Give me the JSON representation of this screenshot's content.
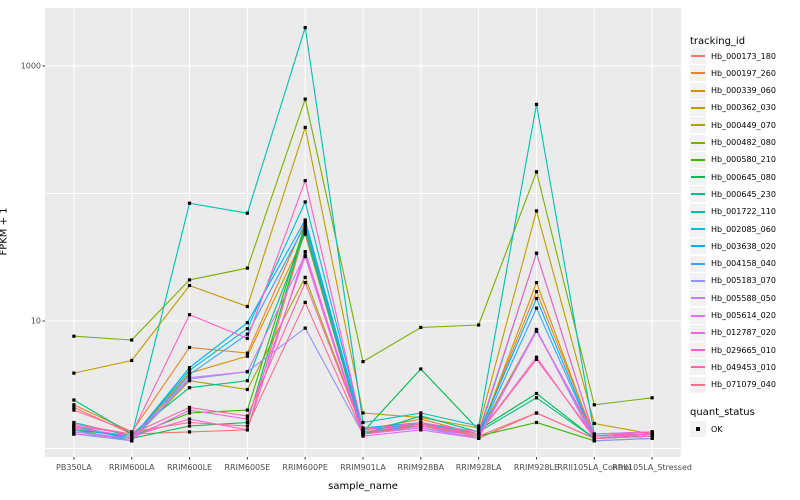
{
  "figure": {
    "x_axis_title": "sample_name",
    "y_axis_title": "FPKM + 1"
  },
  "legend": {
    "tracking_title": "tracking_id",
    "quant_title": "quant_status",
    "quant_items": [
      {
        "label": "OK",
        "shape": "black-square"
      }
    ]
  },
  "chart_data": {
    "type": "line",
    "title": "",
    "xlabel": "sample_name",
    "ylabel": "FPKM + 1",
    "scale_y": "log10",
    "ylim": [
      0.9,
      2900
    ],
    "y_ticks": [
      10,
      1000
    ],
    "y_gridlines": [
      1,
      10,
      100,
      1000
    ],
    "grid": true,
    "legend_position": "right",
    "panel_bg": "#EBEBEB",
    "gridline_color": "#FFFFFF",
    "point_color": "#000000",
    "tick_color": "#333333",
    "categories": [
      "PB350LA",
      "RRIM600LA",
      "RRIM600LE",
      "RRIM600SE",
      "RRIM600PE",
      "RRIM901LA",
      "RRIM928BA",
      "RRIM928LA",
      "RRIM928LE",
      "RRII105LA_Control",
      "RRII105LA_Stressed"
    ],
    "series": [
      {
        "name": "Hb_000173_180",
        "color": "#F8766D",
        "values": [
          2.1,
          1.3,
          1.35,
          1.4,
          52,
          1.3,
          1.6,
          1.2,
          1.9,
          1.2,
          1.25
        ]
      },
      {
        "name": "Hb_000197_260",
        "color": "#E88526",
        "values": [
          2.2,
          1.35,
          6.2,
          5.6,
          60,
          1.4,
          1.7,
          1.3,
          17,
          1.25,
          1.3
        ]
      },
      {
        "name": "Hb_000339_060",
        "color": "#D89000",
        "values": [
          1.5,
          1.2,
          3.9,
          5.3,
          48,
          1.3,
          1.55,
          1.25,
          20,
          1.2,
          1.25
        ]
      },
      {
        "name": "Hb_000362_030",
        "color": "#C09B00",
        "values": [
          3.9,
          4.9,
          19,
          13,
          330,
          1.9,
          1.75,
          1.45,
          73,
          1.57,
          1.3
        ]
      },
      {
        "name": "Hb_000449_070",
        "color": "#A3A500",
        "values": [
          1.4,
          1.15,
          3.4,
          2.9,
          22,
          1.35,
          1.5,
          1.3,
          8.5,
          1.25,
          1.3
        ]
      },
      {
        "name": "Hb_000482_080",
        "color": "#7CAE00",
        "values": [
          7.6,
          7.1,
          21,
          26,
          550,
          4.8,
          8.9,
          9.3,
          148,
          2.2,
          2.5
        ]
      },
      {
        "name": "Hb_000580_210",
        "color": "#39B600",
        "values": [
          1.4,
          1.25,
          1.9,
          2.0,
          58,
          1.3,
          1.5,
          1.25,
          1.6,
          1.15,
          1.2
        ]
      },
      {
        "name": "Hb_000645_080",
        "color": "#00BB4E",
        "values": [
          1.3,
          1.2,
          1.5,
          1.6,
          55,
          1.35,
          4.2,
          1.4,
          2.7,
          1.2,
          1.25
        ]
      },
      {
        "name": "Hb_000645_230",
        "color": "#00C087",
        "values": [
          2.4,
          1.3,
          3.0,
          3.4,
          50,
          1.3,
          1.8,
          1.35,
          2.5,
          1.2,
          1.3
        ]
      },
      {
        "name": "Hb_001722_110",
        "color": "#00C0AF",
        "values": [
          1.6,
          1.25,
          84,
          70,
          2000,
          1.6,
          1.9,
          1.5,
          500,
          1.3,
          1.35
        ]
      },
      {
        "name": "Hb_002085_060",
        "color": "#00BCD8",
        "values": [
          1.5,
          1.2,
          4.1,
          8.7,
          86,
          1.45,
          1.6,
          1.3,
          34,
          1.25,
          1.3
        ]
      },
      {
        "name": "Hb_003638_020",
        "color": "#00B0F6",
        "values": [
          1.45,
          1.2,
          4.3,
          9.7,
          62,
          1.4,
          1.55,
          1.3,
          15,
          1.2,
          1.25
        ]
      },
      {
        "name": "Hb_004158_040",
        "color": "#35A2FF",
        "values": [
          1.4,
          1.15,
          3.8,
          7.9,
          57,
          1.35,
          1.5,
          1.25,
          12.6,
          1.2,
          1.25
        ]
      },
      {
        "name": "Hb_005183_070",
        "color": "#9590FF",
        "values": [
          1.3,
          1.15,
          3.5,
          4.0,
          8.8,
          1.3,
          1.45,
          1.2,
          8.6,
          1.15,
          1.2
        ]
      },
      {
        "name": "Hb_005588_050",
        "color": "#C77CFF",
        "values": [
          1.35,
          1.2,
          3.6,
          4.0,
          33,
          1.3,
          1.45,
          1.25,
          8.4,
          1.2,
          1.3
        ]
      },
      {
        "name": "Hb_005614_020",
        "color": "#E76BF3",
        "values": [
          1.3,
          1.2,
          2.0,
          1.7,
          32,
          1.25,
          1.4,
          1.2,
          8.3,
          1.3,
          1.35
        ]
      },
      {
        "name": "Hb_012787_020",
        "color": "#FA62DB",
        "values": [
          1.45,
          1.25,
          1.7,
          1.4,
          35,
          1.3,
          1.5,
          1.3,
          5.2,
          1.2,
          1.3
        ]
      },
      {
        "name": "Hb_029665_010",
        "color": "#FF61C9",
        "values": [
          1.5,
          1.3,
          11.2,
          7.3,
          126,
          1.4,
          1.6,
          1.35,
          34,
          1.25,
          1.3
        ]
      },
      {
        "name": "Hb_049453_010",
        "color": "#FF67A4",
        "values": [
          1.55,
          1.3,
          2.1,
          1.8,
          20,
          1.35,
          1.55,
          1.3,
          5.0,
          1.25,
          1.35
        ]
      },
      {
        "name": "Hb_071079_040",
        "color": "#FF6C91",
        "values": [
          2.0,
          1.35,
          1.6,
          1.5,
          14,
          1.3,
          1.5,
          1.25,
          1.9,
          1.2,
          1.25
        ]
      }
    ]
  }
}
